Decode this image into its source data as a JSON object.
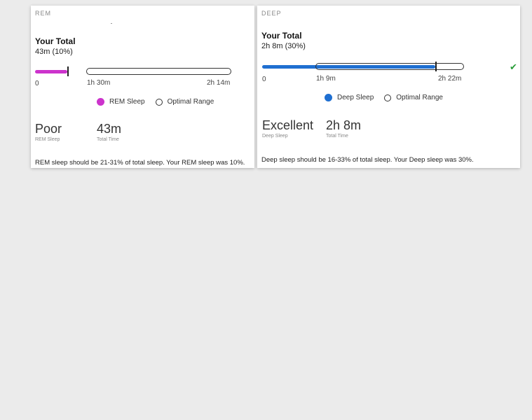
{
  "rem": {
    "section_label": "REM",
    "total_title": "Your Total",
    "total_value": "43m (10%)",
    "bar_color": "#cc33cc",
    "tick_min": "0",
    "tick_low": "1h 30m",
    "tick_high": "2h 14m",
    "legend_actual": "REM Sleep",
    "legend_range": "Optimal Range",
    "rating": "Poor",
    "rating_caption": "REM Sleep",
    "total_time": "43m",
    "total_time_caption": "Total Time",
    "description": "REM sleep should be 21-31% of total sleep. Your REM sleep was 10%."
  },
  "deep": {
    "section_label": "DEEP",
    "total_title": "Your Total",
    "total_value": "2h 8m (30%)",
    "bar_color": "#1f6fd1",
    "tick_min": "0",
    "tick_low": "1h 9m",
    "tick_high": "2h 22m",
    "legend_actual": "Deep Sleep",
    "legend_range": "Optimal Range",
    "rating": "Excellent",
    "rating_caption": "Deep Sleep",
    "total_time": "2h 8m",
    "total_time_caption": "Total Time",
    "description": "Deep sleep should be 16-33% of total sleep. Your Deep sleep was 30%.",
    "status_icon": "checkmark-icon",
    "status_color": "#2a9d3a"
  }
}
